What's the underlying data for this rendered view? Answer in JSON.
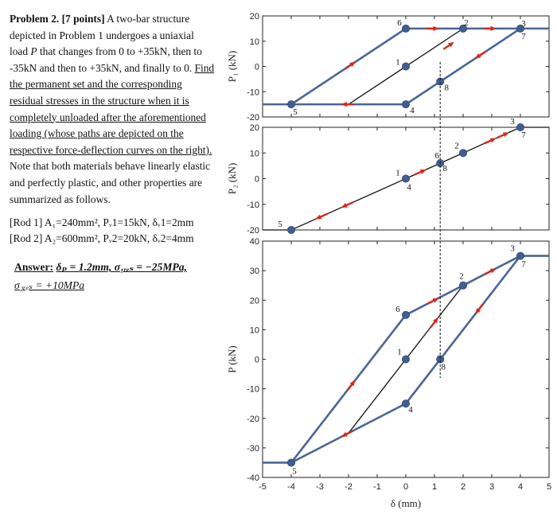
{
  "problem": {
    "heading": "Problem 2. [7 points]",
    "intro_a": " A two-bar structure depicted in Problem 1 undergoes a uniaxial load ",
    "intro_P": "P",
    "intro_b": " that changes from 0 to +35kN, then to -35kN and then to +35kN, and finally to 0. ",
    "task": "Find the permanent set and the corresponding residual stresses in the structure when it is completely unloaded after the aforementioned loading (whose paths are depicted on the respective force-deflection curves on the right).",
    "note": " Note that both materials behave linearly elastic and perfectly plastic, and other properties are summarized as follows.",
    "rod1": "[Rod 1]  A₁=240mm², Pᵥ1=15kN, δᵥ1=2mm",
    "rod2": "[Rod 2]  A₂=600mm², Pᵥ2=20kN, δᵥ2=4mm",
    "answer_label": "Answer:",
    "answer_line1": "δₚ = 1.2mm, σ₁ᵣₑₛ = −25MPa,",
    "answer_line2": "σ₂ᵣₑₛ = +10MPa"
  },
  "chart_data": [
    {
      "type": "line",
      "ylabel": "P₁ (kN)",
      "ylim": [
        -20,
        20
      ],
      "yticks": [
        "-20",
        "-10",
        "0",
        "10",
        "20"
      ],
      "xlim": [
        -5,
        5
      ],
      "colors": {
        "path": "#4a6595",
        "elastic": "#111111",
        "arrow": "#d42a1d",
        "marker": "#3f5f92"
      },
      "blue_path": [
        [
          -5,
          -15
        ],
        [
          -4,
          -15
        ],
        [
          0,
          15
        ],
        [
          2,
          15
        ],
        [
          4,
          15
        ],
        [
          5,
          15
        ]
      ],
      "blue_path_2": [
        [
          -4,
          -15
        ],
        [
          0,
          -15
        ],
        [
          4,
          15
        ]
      ],
      "black_line": [
        [
          -2,
          -15
        ],
        [
          2,
          15
        ]
      ],
      "points": [
        {
          "label": "6",
          "x": 0,
          "y": 15
        },
        {
          "label": "2",
          "x": 2,
          "y": 15
        },
        {
          "label": "3",
          "x": 4,
          "y": 15
        },
        {
          "label": "7",
          "x": 4,
          "y": 15
        },
        {
          "label": "1",
          "x": 0,
          "y": 0
        },
        {
          "label": "8",
          "x": 1.2,
          "y": -6
        },
        {
          "label": "5",
          "x": -4,
          "y": -15
        },
        {
          "label": "4",
          "x": 0,
          "y": -15
        }
      ]
    },
    {
      "type": "line",
      "ylabel": "P₂ (kN)",
      "ylim": [
        -20,
        20
      ],
      "yticks": [
        "-20",
        "-10",
        "0",
        "10",
        "20"
      ],
      "xlim": [
        -5,
        5
      ],
      "black_line": [
        [
          -5,
          -20
        ],
        [
          -4,
          -20
        ],
        [
          4,
          20
        ],
        [
          5,
          20
        ]
      ],
      "points": [
        {
          "label": "1",
          "x": 0,
          "y": 0
        },
        {
          "label": "4",
          "x": 0,
          "y": 0
        },
        {
          "label": "6",
          "x": 1.2,
          "y": 6
        },
        {
          "label": "8",
          "x": 1.2,
          "y": 6
        },
        {
          "label": "2",
          "x": 2,
          "y": 10
        },
        {
          "label": "3",
          "x": 4,
          "y": 20
        },
        {
          "label": "7",
          "x": 4,
          "y": 20
        },
        {
          "label": "5",
          "x": -4,
          "y": -20
        }
      ]
    },
    {
      "type": "line",
      "ylabel": "P (kN)",
      "xlabel": "δ (mm)",
      "ylim": [
        -40,
        40
      ],
      "yticks": [
        "-40",
        "-30",
        "-20",
        "-10",
        "0",
        "10",
        "20",
        "30",
        "40"
      ],
      "xlim": [
        -5,
        5
      ],
      "xticks": [
        "-5",
        "-4",
        "-3",
        "-2",
        "-1",
        "0",
        "1",
        "2",
        "3",
        "4",
        "5"
      ],
      "blue_path": [
        [
          -5,
          -35
        ],
        [
          -4,
          -35
        ],
        [
          0,
          15
        ],
        [
          2,
          25
        ],
        [
          4,
          35
        ],
        [
          5,
          35
        ]
      ],
      "blue_path_2": [
        [
          -4,
          -35
        ],
        [
          0,
          -15
        ],
        [
          4,
          35
        ]
      ],
      "black_line": [
        [
          -2,
          -25
        ],
        [
          2,
          25
        ]
      ],
      "points": [
        {
          "label": "1",
          "x": 0,
          "y": 0
        },
        {
          "label": "2",
          "x": 2,
          "y": 25
        },
        {
          "label": "3",
          "x": 4,
          "y": 35
        },
        {
          "label": "7",
          "x": 4,
          "y": 35
        },
        {
          "label": "4",
          "x": 0,
          "y": -15
        },
        {
          "label": "5",
          "x": -4,
          "y": -35
        },
        {
          "label": "6",
          "x": 0,
          "y": 15
        },
        {
          "label": "8",
          "x": 1.2,
          "y": 0
        }
      ],
      "permanent_set_x": 1.2
    }
  ]
}
